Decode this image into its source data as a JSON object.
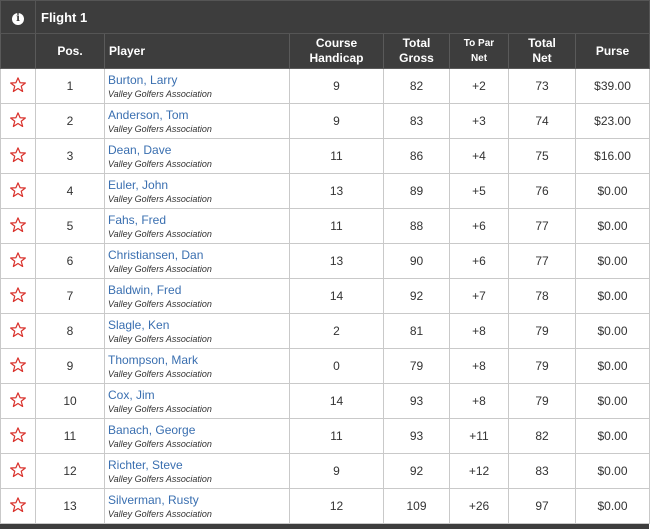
{
  "flight": {
    "title": "Flight 1",
    "info_icon": "info-icon"
  },
  "columns": {
    "pos": "Pos.",
    "player": "Player",
    "course_handicap_1": "Course",
    "course_handicap_2": "Handicap",
    "total_gross_1": "Total",
    "total_gross_2": "Gross",
    "to_par_net_1": "To Par",
    "to_par_net_2": "Net",
    "total_net_1": "Total",
    "total_net_2": "Net",
    "purse": "Purse"
  },
  "colors": {
    "header_bg": "#3d3d3d",
    "player_link": "#3a6fb0",
    "net_purple": "#8a2e9c",
    "star_red": "#d9312b"
  },
  "rows": [
    {
      "pos": "1",
      "player": "Burton, Larry",
      "assoc": "Valley Golfers Association",
      "handicap": "9",
      "gross": "82",
      "to_par": "+2",
      "net": "73",
      "purse": "$39.00"
    },
    {
      "pos": "2",
      "player": "Anderson, Tom",
      "assoc": "Valley Golfers Association",
      "handicap": "9",
      "gross": "83",
      "to_par": "+3",
      "net": "74",
      "purse": "$23.00"
    },
    {
      "pos": "3",
      "player": "Dean, Dave",
      "assoc": "Valley Golfers Association",
      "handicap": "11",
      "gross": "86",
      "to_par": "+4",
      "net": "75",
      "purse": "$16.00"
    },
    {
      "pos": "4",
      "player": "Euler, John",
      "assoc": "Valley Golfers Association",
      "handicap": "13",
      "gross": "89",
      "to_par": "+5",
      "net": "76",
      "purse": "$0.00"
    },
    {
      "pos": "5",
      "player": "Fahs, Fred",
      "assoc": "Valley Golfers Association",
      "handicap": "11",
      "gross": "88",
      "to_par": "+6",
      "net": "77",
      "purse": "$0.00"
    },
    {
      "pos": "6",
      "player": "Christiansen, Dan",
      "assoc": "Valley Golfers Association",
      "handicap": "13",
      "gross": "90",
      "to_par": "+6",
      "net": "77",
      "purse": "$0.00"
    },
    {
      "pos": "7",
      "player": "Baldwin, Fred",
      "assoc": "Valley Golfers Association",
      "handicap": "14",
      "gross": "92",
      "to_par": "+7",
      "net": "78",
      "purse": "$0.00"
    },
    {
      "pos": "8",
      "player": "Slagle, Ken",
      "assoc": "Valley Golfers Association",
      "handicap": "2",
      "gross": "81",
      "to_par": "+8",
      "net": "79",
      "purse": "$0.00"
    },
    {
      "pos": "9",
      "player": "Thompson, Mark",
      "assoc": "Valley Golfers Association",
      "handicap": "0",
      "gross": "79",
      "to_par": "+8",
      "net": "79",
      "purse": "$0.00"
    },
    {
      "pos": "10",
      "player": "Cox, Jim",
      "assoc": "Valley Golfers Association",
      "handicap": "14",
      "gross": "93",
      "to_par": "+8",
      "net": "79",
      "purse": "$0.00"
    },
    {
      "pos": "11",
      "player": "Banach, George",
      "assoc": "Valley Golfers Association",
      "handicap": "11",
      "gross": "93",
      "to_par": "+11",
      "net": "82",
      "purse": "$0.00"
    },
    {
      "pos": "12",
      "player": "Richter, Steve",
      "assoc": "Valley Golfers Association",
      "handicap": "9",
      "gross": "92",
      "to_par": "+12",
      "net": "83",
      "purse": "$0.00"
    },
    {
      "pos": "13",
      "player": "Silverman, Rusty",
      "assoc": "Valley Golfers Association",
      "handicap": "12",
      "gross": "109",
      "to_par": "+26",
      "net": "97",
      "purse": "$0.00"
    }
  ]
}
